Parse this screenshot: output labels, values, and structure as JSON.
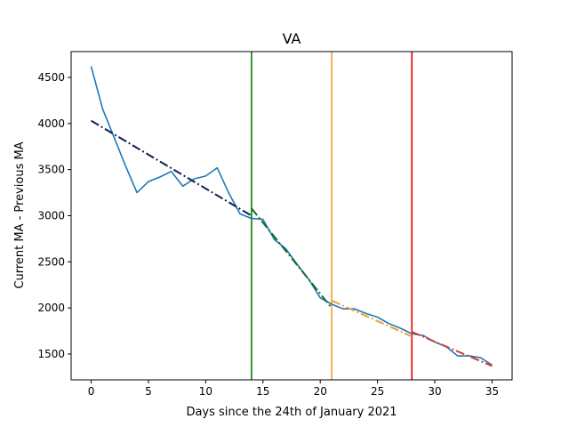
{
  "chart_data": {
    "type": "line",
    "title": "VA",
    "xlabel": "Days since the 24th of January 2021",
    "ylabel": "Current MA - Previous MA",
    "xlim": [
      -1.75,
      36.75
    ],
    "ylim": [
      1220,
      4780
    ],
    "xticks": [
      0,
      5,
      10,
      15,
      20,
      25,
      30,
      35
    ],
    "yticks": [
      1500,
      2000,
      2500,
      3000,
      3500,
      4000,
      4500
    ],
    "grid": false,
    "series": [
      {
        "kind": "data",
        "color": "#1f77b4",
        "style": "solid",
        "x": [
          0,
          1,
          2,
          3,
          4,
          5,
          6,
          7,
          8,
          9,
          10,
          11,
          12,
          13,
          14,
          15,
          16,
          17,
          18,
          19,
          20,
          21,
          22,
          23,
          24,
          25,
          26,
          27,
          28,
          29,
          30,
          31,
          32,
          33,
          34,
          35
        ],
        "y": [
          4620,
          4160,
          3850,
          3540,
          3250,
          3370,
          3420,
          3480,
          3320,
          3400,
          3430,
          3520,
          3250,
          3020,
          2970,
          2960,
          2740,
          2640,
          2470,
          2310,
          2110,
          2040,
          1990,
          1990,
          1940,
          1900,
          1830,
          1780,
          1720,
          1700,
          1630,
          1580,
          1480,
          1480,
          1460,
          1380
        ]
      },
      {
        "kind": "trend",
        "color": "#0d1b57",
        "style": "dashdot",
        "x": [
          0,
          14
        ],
        "y": [
          4030,
          3000
        ]
      },
      {
        "kind": "trend",
        "color": "#1a6b2a",
        "style": "dashdot",
        "x": [
          14,
          21
        ],
        "y": [
          3080,
          2000
        ]
      },
      {
        "kind": "trend",
        "color": "#e8a33a",
        "style": "dashdot",
        "x": [
          21,
          28
        ],
        "y": [
          2080,
          1690
        ]
      },
      {
        "kind": "trend",
        "color": "#d83a2f",
        "style": "dashdot",
        "x": [
          28,
          35
        ],
        "y": [
          1740,
          1370
        ]
      }
    ],
    "vlines": [
      {
        "x": 14,
        "color": "#008000"
      },
      {
        "x": 21,
        "color": "#f5a033"
      },
      {
        "x": 28,
        "color": "#ee0000"
      }
    ]
  }
}
